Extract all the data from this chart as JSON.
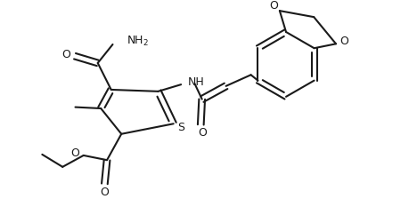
{
  "bg_color": "#ffffff",
  "line_color": "#1a1a1a",
  "lw": 1.5,
  "figsize": [
    4.68,
    2.24
  ],
  "dpi": 100,
  "xlim": [
    0,
    468
  ],
  "ylim": [
    0,
    224
  ]
}
